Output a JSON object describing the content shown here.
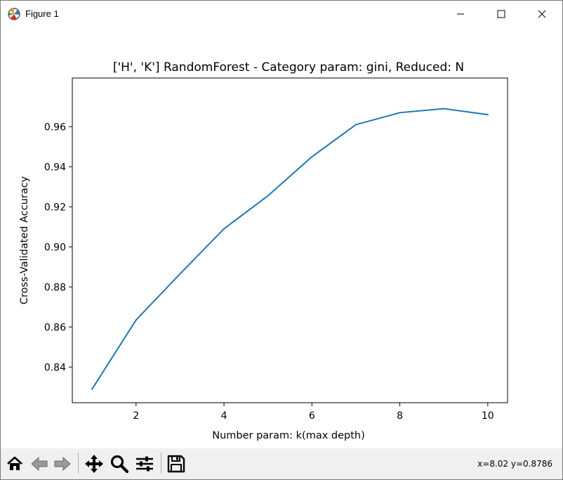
{
  "window": {
    "title": "Figure 1",
    "icons": {
      "app": "matplotlib-icon",
      "minimize": "minimize-icon",
      "maximize": "maximize-icon",
      "close": "close-icon"
    }
  },
  "toolbar": {
    "buttons": [
      {
        "name": "home-icon",
        "label": "Home"
      },
      {
        "name": "back-arrow-icon",
        "label": "Back"
      },
      {
        "name": "forward-arrow-icon",
        "label": "Forward"
      },
      {
        "name": "pan-move-icon",
        "label": "Pan"
      },
      {
        "name": "zoom-magnifier-icon",
        "label": "Zoom"
      },
      {
        "name": "configure-subplots-icon",
        "label": "Subplots"
      },
      {
        "name": "save-disk-icon",
        "label": "Save"
      }
    ],
    "coordinates": "x=8.02 y=0.8786"
  },
  "colors": {
    "line": "#1f77b4",
    "toolbar_bg": "#f0f0f0"
  },
  "chart_data": {
    "type": "line",
    "title": "['H', 'K'] RandomForest - Category param: gini, Reduced: N",
    "xlabel": "Number param: k(max depth)",
    "ylabel": "Cross-Validated Accuracy",
    "x": [
      1,
      2,
      3,
      4,
      5,
      6,
      7,
      8,
      9,
      10
    ],
    "series": [
      {
        "values": [
          0.829,
          0.8635,
          0.8865,
          0.909,
          0.9255,
          0.945,
          0.961,
          0.967,
          0.969,
          0.966
        ]
      }
    ],
    "xlim": [
      0.55,
      10.45
    ],
    "ylim": [
      0.8222,
      0.9843
    ],
    "xticks": [
      2,
      4,
      6,
      8,
      10
    ],
    "xtick_labels": [
      "2",
      "4",
      "6",
      "8",
      "10"
    ],
    "yticks": [
      0.84,
      0.86,
      0.88,
      0.9,
      0.92,
      0.94,
      0.96
    ],
    "ytick_labels": [
      "0.84",
      "0.86",
      "0.88",
      "0.90",
      "0.92",
      "0.94",
      "0.96"
    ],
    "grid": false,
    "legend": "none"
  }
}
